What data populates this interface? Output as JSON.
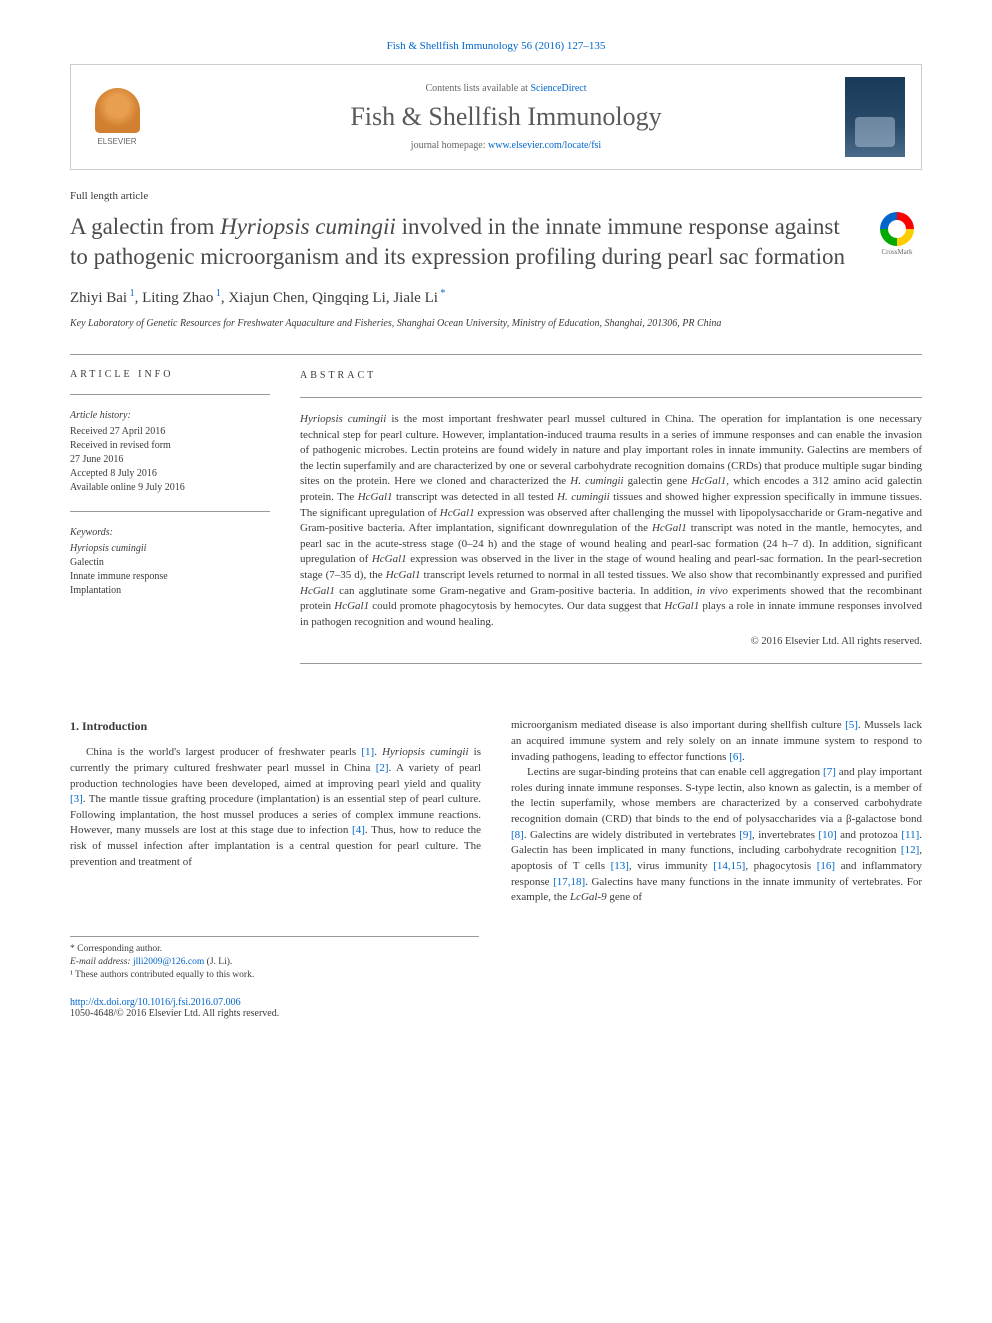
{
  "journal_ref": "Fish & Shellfish Immunology 56 (2016) 127–135",
  "header": {
    "contents_prefix": "Contents lists available at ",
    "contents_link": "ScienceDirect",
    "journal_name": "Fish & Shellfish Immunology",
    "homepage_prefix": "journal homepage: ",
    "homepage_link": "www.elsevier.com/locate/fsi",
    "elsevier_label": "ELSEVIER"
  },
  "article_type": "Full length article",
  "crossmark_label": "CrossMark",
  "title_parts": {
    "p1": "A galectin from ",
    "p2": "Hyriopsis cumingii",
    "p3": " involved in the innate immune response against to pathogenic microorganism and its expression profiling during pearl sac formation"
  },
  "authors": {
    "a1": "Zhiyi Bai",
    "s1": "1",
    "a2": "Liting Zhao",
    "s2": "1",
    "a3": "Xiajun Chen",
    "a4": "Qingqing Li",
    "a5": "Jiale Li",
    "corr": "*"
  },
  "affiliation": "Key Laboratory of Genetic Resources for Freshwater Aquaculture and Fisheries, Shanghai Ocean University, Ministry of Education, Shanghai, 201306, PR China",
  "info": {
    "heading": "ARTICLE INFO",
    "history_label": "Article history:",
    "received": "Received 27 April 2016",
    "revised1": "Received in revised form",
    "revised2": "27 June 2016",
    "accepted": "Accepted 8 July 2016",
    "online": "Available online 9 July 2016",
    "keywords_label": "Keywords:",
    "kw1": "Hyriopsis cumingii",
    "kw2": "Galectin",
    "kw3": "Innate immune response",
    "kw4": "Implantation"
  },
  "abstract": {
    "heading": "ABSTRACT",
    "t1": "Hyriopsis cumingii",
    "t2": " is the most important freshwater pearl mussel cultured in China. The operation for implantation is one necessary technical step for pearl culture. However, implantation-induced trauma results in a series of immune responses and can enable the invasion of pathogenic microbes. Lectin proteins are found widely in nature and play important roles in innate immunity. Galectins are members of the lectin superfamily and are characterized by one or several carbohydrate recognition domains (CRDs) that produce multiple sugar binding sites on the protein. Here we cloned and characterized the ",
    "t3": "H. cumingii",
    "t4": " galectin gene ",
    "t5": "HcGal1",
    "t6": ", which encodes a 312 amino acid galectin protein. The ",
    "t7": "HcGal1",
    "t8": " transcript was detected in all tested ",
    "t9": "H. cumingii",
    "t10": " tissues and showed higher expression specifically in immune tissues. The significant upregulation of ",
    "t11": "HcGal1",
    "t12": " expression was observed after challenging the mussel with lipopolysaccharide or Gram-negative and Gram-positive bacteria. After implantation, significant downregulation of the ",
    "t13": "HcGal1",
    "t14": " transcript was noted in the mantle, hemocytes, and pearl sac in the acute-stress stage (0–24 h) and the stage of wound healing and pearl-sac formation (24 h–7 d). In addition, significant upregulation of ",
    "t15": "HcGal1",
    "t16": " expression was observed in the liver in the stage of wound healing and pearl-sac formation. In the pearl-secretion stage (7–35 d), the ",
    "t17": "HcGal1",
    "t18": " transcript levels returned to normal in all tested tissues. We also show that recombinantly expressed and purified ",
    "t19": "HcGal1",
    "t20": " can agglutinate some Gram-negative and Gram-positive bacteria. In addition, ",
    "t21": "in vivo",
    "t22": " experiments showed that the recombinant protein ",
    "t23": "HcGal1",
    "t24": " could promote phagocytosis by hemocytes. Our data suggest that ",
    "t25": "HcGal1",
    "t26": " plays a role in innate immune responses involved in pathogen recognition and wound healing.",
    "copyright": "© 2016 Elsevier Ltd. All rights reserved."
  },
  "body": {
    "section_heading": "1. Introduction",
    "col1": {
      "p1a": "China is the world's largest producer of freshwater pearls ",
      "r1": "[1]",
      "p1b": ". ",
      "i1": "Hyriopsis cumingii",
      "p1c": " is currently the primary cultured freshwater pearl mussel in China ",
      "r2": "[2]",
      "p1d": ". A variety of pearl production technologies have been developed, aimed at improving pearl yield and quality ",
      "r3": "[3]",
      "p1e": ". The mantle tissue grafting procedure (implantation) is an essential step of pearl culture. Following implantation, the host mussel produces a series of complex immune reactions. However, many mussels are lost at this stage due to infection ",
      "r4": "[4]",
      "p1f": ". Thus, how to reduce the risk of mussel infection after implantation is a central question for pearl culture. The prevention and treatment of"
    },
    "col2": {
      "p1a": "microorganism mediated disease is also important during shellfish culture ",
      "r5": "[5]",
      "p1b": ". Mussels lack an acquired immune system and rely solely on an innate immune system to respond to invading pathogens, leading to effector functions ",
      "r6": "[6]",
      "p1c": ".",
      "p2a": "Lectins are sugar-binding proteins that can enable cell aggregation ",
      "r7": "[7]",
      "p2b": " and play important roles during innate immune responses. S-type lectin, also known as galectin, is a member of the lectin superfamily, whose members are characterized by a conserved carbohydrate recognition domain (CRD) that binds to the end of polysaccharides via a β-galactose bond ",
      "r8": "[8]",
      "p2c": ". Galectins are widely distributed in vertebrates ",
      "r9": "[9]",
      "p2d": ", invertebrates ",
      "r10": "[10]",
      "p2e": " and protozoa ",
      "r11": "[11]",
      "p2f": ". Galectin has been implicated in many functions, including carbohydrate recognition ",
      "r12": "[12]",
      "p2g": ", apoptosis of T cells ",
      "r13": "[13]",
      "p2h": ", virus immunity ",
      "r14": "[14,15]",
      "p2i": ", phagocytosis ",
      "r16": "[16]",
      "p2j": " and inflammatory response ",
      "r17": "[17,18]",
      "p2k": ". Galectins have many functions in the innate immunity of vertebrates. For example, the ",
      "i2": "LcGal-9",
      "p2l": " gene of"
    }
  },
  "footnotes": {
    "corr_label": "* Corresponding author.",
    "email_label": "E-mail address: ",
    "email": "jlli2009@126.com",
    "email_suffix": " (J. Li).",
    "note1": "¹ These authors contributed equally to this work."
  },
  "footer": {
    "doi": "http://dx.doi.org/10.1016/j.fsi.2016.07.006",
    "issn_line": "1050-4648/© 2016 Elsevier Ltd. All rights reserved."
  },
  "colors": {
    "link": "#0066cc",
    "text": "#3a3a3a",
    "border": "#cccccc",
    "rule": "#999999"
  }
}
